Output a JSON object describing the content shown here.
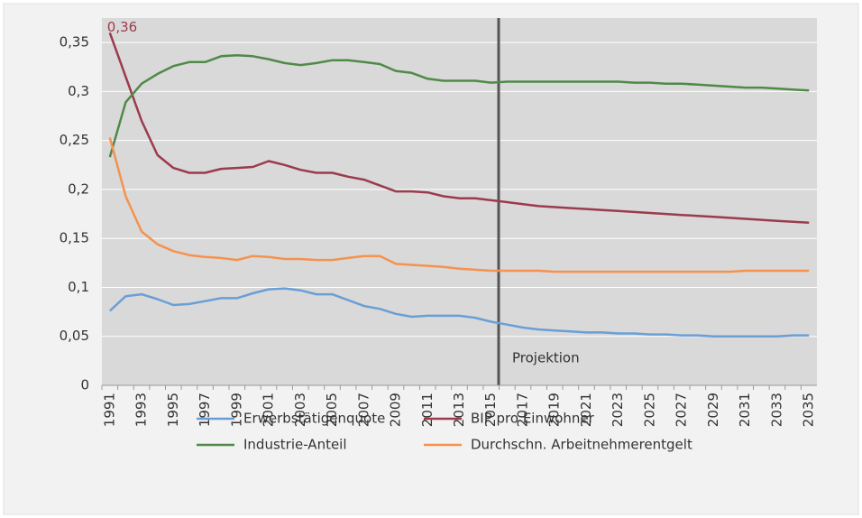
{
  "chart_data": {
    "type": "line",
    "categories": [
      "1991",
      null,
      "1993",
      null,
      "1995",
      null,
      "1997",
      null,
      "1999",
      null,
      "2001",
      null,
      "2003",
      null,
      "2005",
      null,
      "2007",
      null,
      "2009",
      null,
      "2011",
      null,
      "2013",
      null,
      "2015",
      null,
      "2017",
      null,
      "2019",
      null,
      "2021",
      null,
      "2023",
      null,
      "2025",
      null,
      "2027",
      null,
      "2029",
      null,
      "2031",
      null,
      "2033",
      null,
      "2035"
    ],
    "series": [
      {
        "name": "Erwerbstätigenquote",
        "color": "#6a9fd6",
        "values": [
          0.076,
          0.091,
          0.093,
          0.088,
          0.082,
          0.083,
          0.086,
          0.089,
          0.089,
          0.094,
          0.098,
          0.099,
          0.097,
          0.093,
          0.093,
          0.087,
          0.081,
          0.078,
          0.073,
          0.07,
          0.071,
          0.071,
          0.071,
          0.069,
          0.065,
          0.062,
          0.059,
          0.057,
          0.056,
          0.055,
          0.054,
          0.054,
          0.053,
          0.053,
          0.052,
          0.052,
          0.051,
          0.051,
          0.05,
          0.05,
          0.05,
          0.05,
          0.05,
          0.051,
          0.051
        ]
      },
      {
        "name": "BIP pro Einwohner",
        "color": "#9b3b4c",
        "values": [
          0.36,
          0.315,
          0.27,
          0.235,
          0.222,
          0.217,
          0.217,
          0.221,
          0.222,
          0.223,
          0.229,
          0.225,
          0.22,
          0.217,
          0.217,
          0.213,
          0.21,
          0.204,
          0.198,
          0.198,
          0.197,
          0.193,
          0.191,
          0.191,
          0.189,
          0.187,
          0.185,
          0.183,
          0.182,
          0.181,
          0.18,
          0.179,
          0.178,
          0.177,
          0.176,
          0.175,
          0.174,
          0.173,
          0.172,
          0.171,
          0.17,
          0.169,
          0.168,
          0.167,
          0.166
        ],
        "value_labels": [
          "0,36",
          null,
          null,
          null,
          null,
          null,
          null,
          null,
          null,
          null,
          null,
          null,
          null,
          null,
          null,
          null,
          null,
          null,
          null,
          null,
          null,
          null,
          null,
          null,
          null,
          null,
          null,
          null,
          null,
          null,
          null,
          null,
          null,
          null,
          null,
          null,
          null,
          null,
          null,
          null,
          null,
          null,
          null,
          null,
          null
        ]
      },
      {
        "name": "Industrie-Anteil",
        "color": "#4f8a47",
        "values": [
          0.233,
          0.289,
          0.308,
          0.318,
          0.326,
          0.33,
          0.33,
          0.336,
          0.337,
          0.336,
          0.333,
          0.329,
          0.327,
          0.329,
          0.332,
          0.332,
          0.33,
          0.328,
          0.321,
          0.319,
          0.313,
          0.311,
          0.311,
          0.311,
          0.309,
          0.31,
          0.31,
          0.31,
          0.31,
          0.31,
          0.31,
          0.31,
          0.31,
          0.309,
          0.309,
          0.308,
          0.308,
          0.307,
          0.306,
          0.305,
          0.304,
          0.304,
          0.303,
          0.302,
          0.301
        ]
      },
      {
        "name": "Durchschn. Arbeitnehmerentgelt",
        "color": "#f5924e",
        "values": [
          0.253,
          0.193,
          0.157,
          0.144,
          0.137,
          0.133,
          0.131,
          0.13,
          0.128,
          0.132,
          0.131,
          0.129,
          0.129,
          0.128,
          0.128,
          0.13,
          0.132,
          0.132,
          0.124,
          0.123,
          0.122,
          0.121,
          0.119,
          0.118,
          0.117,
          0.117,
          0.117,
          0.117,
          0.116,
          0.116,
          0.116,
          0.116,
          0.116,
          0.116,
          0.116,
          0.116,
          0.116,
          0.116,
          0.116,
          0.116,
          0.117,
          0.117,
          0.117,
          0.117,
          0.117
        ]
      }
    ],
    "annotation": "Projektion",
    "ylim": [
      0,
      0.375
    ],
    "yticks": [
      0,
      {
        "value": 0.05,
        "label": "0,05"
      },
      {
        "value": 0.1,
        "label": "0,1"
      },
      {
        "value": 0.15,
        "label": "0,15"
      },
      {
        "value": 0.2,
        "label": "0,2"
      },
      {
        "value": 0.25,
        "label": "0,25"
      },
      {
        "value": 0.3,
        "label": "0,3"
      },
      {
        "value": 0.35,
        "label": "0,35"
      }
    ],
    "grid": true
  }
}
